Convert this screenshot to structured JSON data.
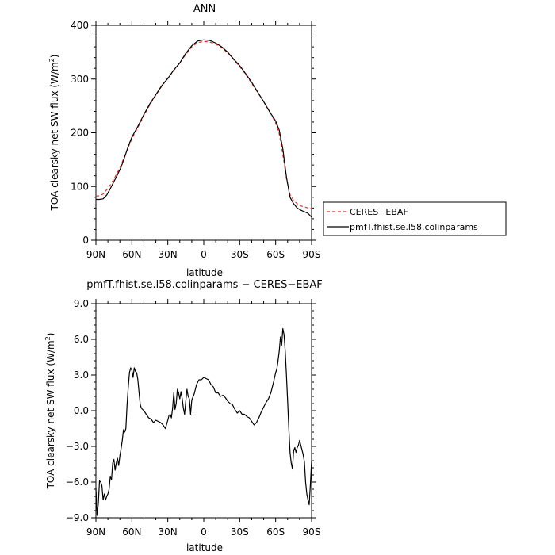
{
  "chart_data": [
    {
      "type": "line",
      "title": "ANN",
      "xlabel": "latitude",
      "ylabel": "TOA clearsky net SW flux (W/m²)",
      "xlim": [
        90,
        -90
      ],
      "ylim": [
        0,
        400
      ],
      "x_tick_labels": [
        "90N",
        "60N",
        "30N",
        "0",
        "30S",
        "60S",
        "90S"
      ],
      "y_tick_labels": [
        "0",
        "100",
        "200",
        "300",
        "400"
      ],
      "grid": false,
      "legend_position": "outside-right",
      "series": [
        {
          "name": "CERES−EBAF",
          "color": "#e8322a",
          "dash": "dashed",
          "x": [
            90,
            87,
            84,
            81,
            78,
            75,
            72,
            69,
            66,
            63,
            60,
            55,
            50,
            45,
            40,
            35,
            30,
            25,
            20,
            15,
            10,
            5,
            0,
            -5,
            -10,
            -15,
            -20,
            -25,
            -30,
            -35,
            -40,
            -45,
            -50,
            -55,
            -60,
            -63,
            -66,
            -69,
            -72,
            -75,
            -78,
            -81,
            -84,
            -87,
            -90
          ],
          "y": [
            82,
            83,
            86,
            94,
            103,
            114,
            126,
            140,
            157,
            173,
            189,
            210,
            232,
            252,
            270,
            287,
            302,
            316,
            330,
            346,
            360,
            368,
            370,
            369,
            365,
            358,
            349,
            336,
            323,
            309,
            292,
            275,
            258,
            240,
            218,
            198,
            160,
            115,
            85,
            74,
            68,
            64,
            62,
            60,
            59
          ]
        },
        {
          "name": "pmfT.fhist.se.l58.colinparams",
          "color": "#000000",
          "dash": "solid",
          "x": [
            90,
            87,
            84,
            81,
            78,
            75,
            72,
            69,
            66,
            63,
            60,
            55,
            50,
            45,
            40,
            35,
            30,
            25,
            20,
            15,
            10,
            5,
            0,
            -5,
            -10,
            -15,
            -20,
            -25,
            -30,
            -35,
            -40,
            -45,
            -50,
            -55,
            -60,
            -63,
            -66,
            -69,
            -72,
            -75,
            -78,
            -81,
            -84,
            -87,
            -90
          ],
          "y": [
            76,
            76,
            77,
            84,
            96,
            109,
            122,
            136,
            155,
            175,
            192,
            212,
            234,
            254,
            271,
            288,
            301,
            317,
            330,
            348,
            362,
            371,
            373,
            372,
            367,
            360,
            350,
            337,
            325,
            310,
            294,
            276,
            258,
            239,
            222,
            205,
            170,
            118,
            80,
            68,
            60,
            56,
            53,
            50,
            43
          ]
        }
      ]
    },
    {
      "type": "line",
      "title": "pmfT.fhist.se.l58.colinparams − CERES−EBAF",
      "xlabel": "latitude",
      "ylabel": "TOA clearsky net SW flux (W/m²)",
      "xlim": [
        90,
        -90
      ],
      "ylim": [
        -9,
        9
      ],
      "x_tick_labels": [
        "90N",
        "60N",
        "30N",
        "0",
        "30S",
        "60S",
        "90S"
      ],
      "y_tick_labels": [
        "−9.0",
        "−6.0",
        "−3.0",
        "0.0",
        "3.0",
        "6.0",
        "9.0"
      ],
      "grid": false,
      "series": [
        {
          "color": "#000000",
          "dash": "solid",
          "x": [
            90,
            89,
            88,
            87,
            86,
            85,
            84,
            83,
            82,
            81,
            80,
            79,
            78,
            77,
            76,
            75,
            74,
            73,
            72,
            71,
            70,
            69,
            68,
            67,
            66,
            65,
            64,
            63,
            62,
            61,
            60,
            59,
            58,
            57,
            56,
            55,
            54,
            53,
            52,
            50,
            48,
            46,
            44,
            42,
            40,
            38,
            36,
            34,
            32,
            30,
            29,
            28,
            27,
            26,
            25,
            24,
            23,
            22,
            21,
            20,
            19,
            18,
            17,
            16,
            15,
            14,
            13,
            12,
            11,
            10,
            8,
            6,
            4,
            2,
            0,
            -2,
            -4,
            -6,
            -8,
            -10,
            -12,
            -14,
            -16,
            -18,
            -20,
            -22,
            -24,
            -26,
            -28,
            -30,
            -32,
            -34,
            -36,
            -38,
            -40,
            -42,
            -44,
            -46,
            -48,
            -50,
            -52,
            -54,
            -56,
            -58,
            -60,
            -61,
            -62,
            -63,
            -64,
            -65,
            -66,
            -67,
            -68,
            -69,
            -70,
            -71,
            -72,
            -73,
            -74,
            -75,
            -76,
            -77,
            -78,
            -79,
            -80,
            -81,
            -82,
            -83,
            -84,
            -85,
            -86,
            -87,
            -88,
            -89,
            -90
          ],
          "y": [
            -6.5,
            -8.8,
            -7.8,
            -5.9,
            -6.0,
            -6.3,
            -7.5,
            -7.0,
            -7.5,
            -7.2,
            -7.0,
            -6.6,
            -5.5,
            -5.8,
            -4.4,
            -4.1,
            -5.0,
            -4.4,
            -4.0,
            -4.6,
            -3.8,
            -3.2,
            -2.5,
            -1.6,
            -1.8,
            -1.5,
            0.5,
            2.0,
            3.2,
            3.6,
            3.4,
            2.8,
            3.6,
            3.3,
            3.2,
            2.6,
            1.5,
            0.5,
            0.2,
            0.0,
            -0.3,
            -0.6,
            -0.7,
            -1.0,
            -0.8,
            -0.9,
            -1.0,
            -1.2,
            -1.5,
            -0.8,
            -0.4,
            -0.3,
            -0.6,
            0.2,
            1.5,
            0.1,
            0.6,
            1.8,
            1.5,
            1.0,
            1.6,
            1.0,
            0.2,
            -0.3,
            0.8,
            1.8,
            1.2,
            1.0,
            -0.3,
            0.9,
            1.4,
            2.2,
            2.6,
            2.6,
            2.8,
            2.7,
            2.6,
            2.2,
            2.0,
            1.5,
            1.5,
            1.2,
            1.3,
            1.1,
            0.8,
            0.6,
            0.5,
            0.1,
            -0.2,
            0.0,
            -0.3,
            -0.3,
            -0.5,
            -0.6,
            -0.9,
            -1.2,
            -1.0,
            -0.6,
            -0.1,
            0.3,
            0.7,
            1.0,
            1.5,
            2.3,
            3.2,
            3.5,
            4.2,
            5.0,
            6.2,
            5.5,
            6.9,
            6.4,
            5.0,
            3.0,
            0.8,
            -1.5,
            -3.5,
            -4.4,
            -4.9,
            -3.4,
            -3.1,
            -3.5,
            -3.1,
            -2.9,
            -2.5,
            -2.9,
            -3.3,
            -3.7,
            -4.3,
            -6.0,
            -7.0,
            -7.5,
            -7.9,
            -6.2,
            -4.2
          ]
        }
      ]
    }
  ]
}
